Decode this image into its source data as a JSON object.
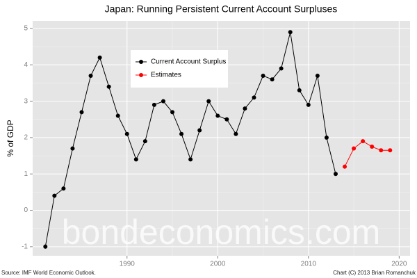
{
  "chart_data": {
    "type": "line",
    "title": "Japan: Running Persistent Current Account Surpluses",
    "y_label": "% of GDP",
    "source": "Source: IMF World Economic Outlook.",
    "credit": "Chart (C) 2013 Brian Romanchuk",
    "watermark": "bondeconomics.com",
    "series": [
      {
        "name": "Current Account Surplus",
        "color": "#000000",
        "x": [
          1981,
          1982,
          1983,
          1984,
          1985,
          1986,
          1987,
          1988,
          1989,
          1990,
          1991,
          1992,
          1993,
          1994,
          1995,
          1996,
          1997,
          1998,
          1999,
          2000,
          2001,
          2002,
          2003,
          2004,
          2005,
          2006,
          2007,
          2008,
          2009,
          2010,
          2011,
          2012,
          2013
        ],
        "values": [
          -1.0,
          0.4,
          0.6,
          1.7,
          2.7,
          3.7,
          4.2,
          3.4,
          2.6,
          2.1,
          1.4,
          1.9,
          2.9,
          3.0,
          2.7,
          2.1,
          1.4,
          2.2,
          3.0,
          2.6,
          2.5,
          2.1,
          2.8,
          3.1,
          3.7,
          3.6,
          3.9,
          4.9,
          3.3,
          2.9,
          3.7,
          2.0,
          1.0
        ]
      },
      {
        "name": "Estimates",
        "color": "#ff0000",
        "x": [
          2014,
          2015,
          2016,
          2017,
          2018,
          2019
        ],
        "values": [
          1.2,
          1.7,
          1.9,
          1.75,
          1.65,
          1.65
        ]
      }
    ],
    "xlim": [
      1979.6,
      2021.2
    ],
    "xticks": [
      1990,
      2000,
      2010,
      2020
    ],
    "ylim": [
      -1.25,
      5.21
    ],
    "yticks": [
      -1,
      0,
      1,
      2,
      3,
      4,
      5
    ],
    "grid": true,
    "legend": "top-left"
  }
}
